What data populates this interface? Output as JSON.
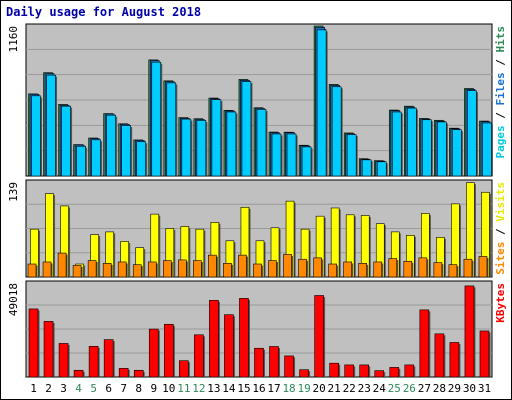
{
  "chart_data": {
    "type": "bar",
    "title": "Daily usage for August 2018",
    "categories": [
      "1",
      "2",
      "3",
      "4",
      "5",
      "6",
      "7",
      "8",
      "9",
      "10",
      "11",
      "12",
      "13",
      "14",
      "15",
      "16",
      "17",
      "18",
      "19",
      "20",
      "21",
      "22",
      "23",
      "24",
      "25",
      "26",
      "27",
      "28",
      "29",
      "30",
      "31"
    ],
    "weekend_days": [
      "4",
      "5",
      "11",
      "12",
      "18",
      "19",
      "25",
      "26"
    ],
    "panels": [
      {
        "id": "top",
        "ymax_label": "1160",
        "ylim": [
          0,
          1160
        ],
        "side_label": [
          {
            "text": "Pages",
            "color": "#00ccdd"
          },
          {
            "text": " / ",
            "color": "#000000"
          },
          {
            "text": "Files",
            "color": "#1a6fd0"
          },
          {
            "text": " / ",
            "color": "#000000"
          },
          {
            "text": "Hits",
            "color": "#2e8b57"
          }
        ],
        "series": [
          {
            "name": "Hits",
            "color": "#2e8b57",
            "values": [
              635,
              799,
              554,
              243,
              294,
              483,
              404,
              279,
              898,
              736,
              452,
              443,
              603,
              508,
              747,
              528,
              340,
              339,
              238,
              1160,
              709,
              333,
              134,
              119,
              510,
              540,
              445,
              431,
              370,
              677,
              425
            ]
          },
          {
            "name": "Files",
            "color": "#1a6fd0",
            "values": [
              632,
              792,
              547,
              240,
              290,
              480,
              400,
              275,
              893,
              730,
              447,
              437,
              597,
              503,
              740,
              522,
              334,
              335,
              233,
              1149,
              700,
              326,
              130,
              115,
              505,
              533,
              441,
              424,
              365,
              670,
              420
            ]
          },
          {
            "name": "Pages",
            "color": "#00ccff",
            "values": [
              620,
              780,
              540,
              230,
              280,
              470,
              390,
              265,
              880,
              720,
              440,
              430,
              590,
              495,
              730,
              515,
              325,
              325,
              225,
              1130,
              690,
              320,
              125,
              110,
              495,
              525,
              435,
              418,
              358,
              660,
              410
            ]
          }
        ]
      },
      {
        "id": "middle",
        "ymax_label": "139",
        "ylim": [
          0,
          139
        ],
        "side_label": [
          {
            "text": "Sites",
            "color": "#ff8800"
          },
          {
            "text": " / ",
            "color": "#000000"
          },
          {
            "text": "Visits",
            "color": "#e8e800"
          }
        ],
        "series": [
          {
            "name": "Visits",
            "color": "#ffff00",
            "values": [
              70,
              122,
              104,
              19,
              62,
              66,
              52,
              43,
              92,
              71,
              74,
              70,
              80,
              53,
              102,
              53,
              72,
              111,
              70,
              89,
              101,
              91,
              90,
              78,
              66,
              61,
              93,
              58,
              107,
              138,
              124
            ]
          },
          {
            "name": "Sites",
            "color": "#ff8800",
            "values": [
              19,
              22,
              35,
              17,
              24,
              20,
              22,
              18,
              22,
              24,
              25,
              24,
              32,
              20,
              32,
              19,
              24,
              33,
              26,
              28,
              19,
              22,
              20,
              22,
              27,
              23,
              28,
              21,
              18,
              26,
              30
            ]
          }
        ]
      },
      {
        "id": "bottom",
        "ymax_label": "49018",
        "ylim": [
          0,
          49018
        ],
        "side_label": [
          {
            "text": "KBytes",
            "color": "#ff0000"
          }
        ],
        "series": [
          {
            "name": "KBytes",
            "color": "#ff0000",
            "values": [
              35500,
              29000,
              17500,
              3500,
              16000,
              19500,
              4500,
              3500,
              25000,
              27500,
              8500,
              22000,
              40000,
              32500,
              41000,
              15000,
              15900,
              11000,
              3800,
              42500,
              7200,
              6300,
              6300,
              3300,
              5000,
              6300,
              35000,
              22500,
              18000,
              47500,
              24000
            ]
          }
        ]
      }
    ]
  }
}
